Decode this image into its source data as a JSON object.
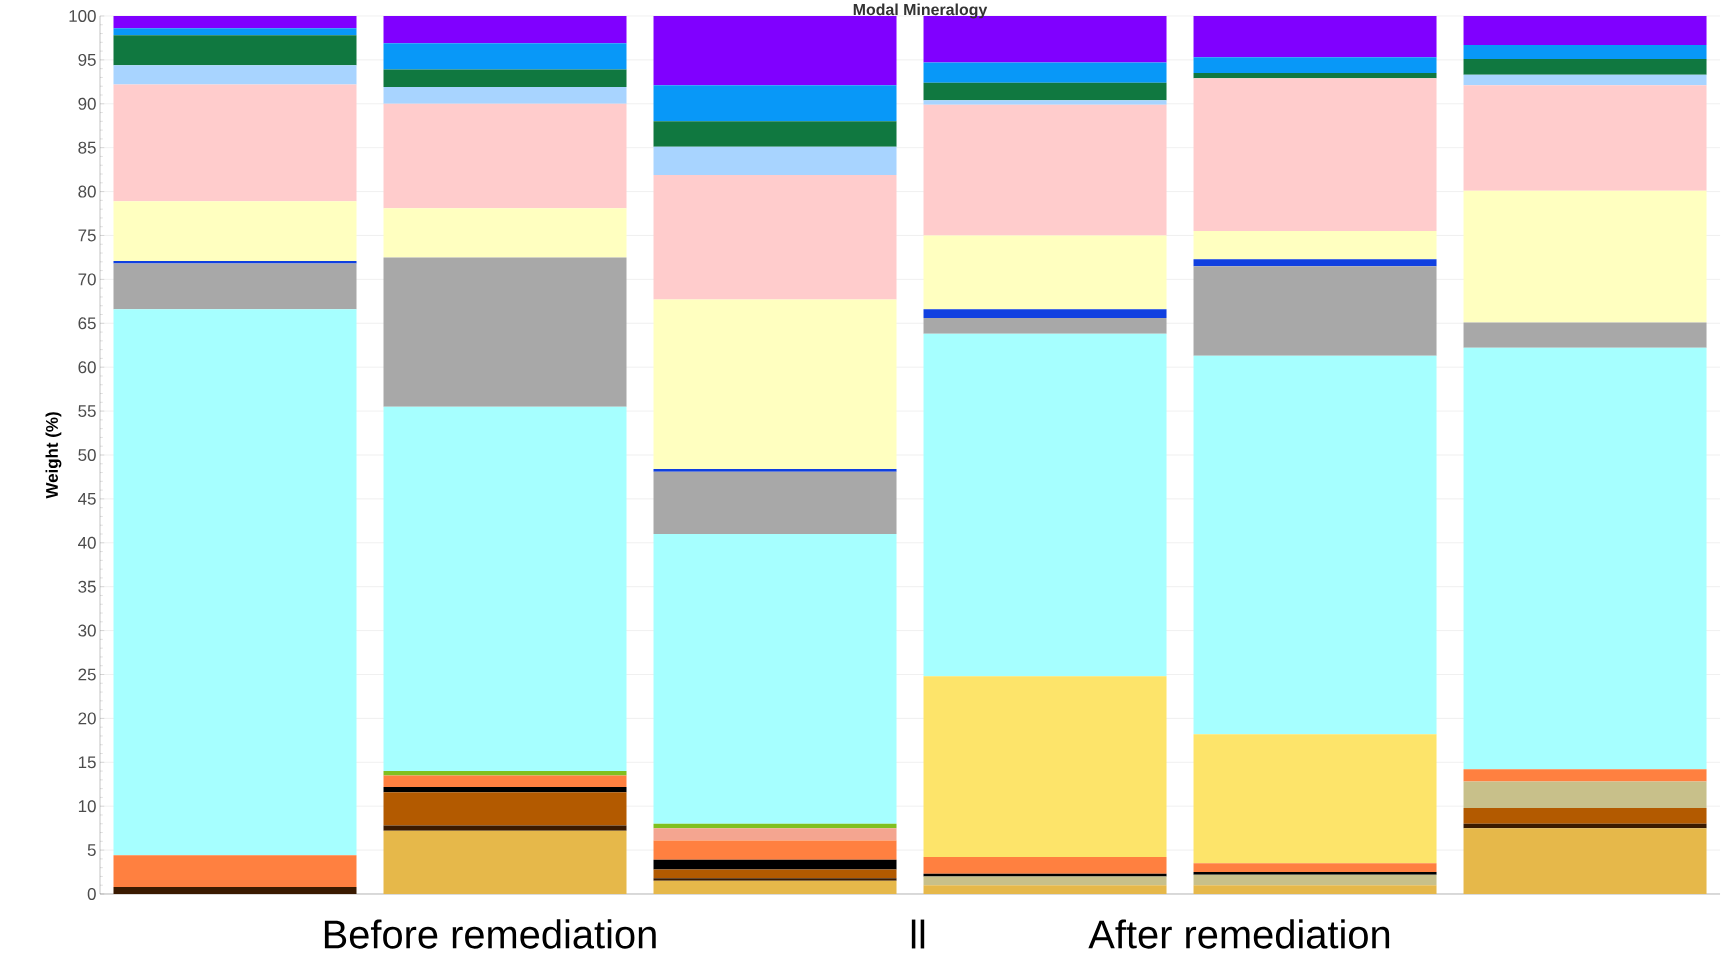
{
  "chart_data": {
    "type": "bar",
    "title": "Modal Mineralogy",
    "ylabel": "Weight (%)",
    "categories": [
      null,
      null,
      null,
      null,
      null,
      null
    ],
    "stacked": true,
    "grid": "y",
    "ylim": [
      0,
      100
    ],
    "yticks": [
      0,
      5,
      10,
      15,
      20,
      25,
      30,
      35,
      40,
      45,
      50,
      55,
      60,
      65,
      70,
      75,
      80,
      85,
      90,
      95,
      100
    ],
    "annotations": [
      "Before remediation",
      "ll",
      "After remediation"
    ],
    "series": [
      {
        "color": "#e6b84a",
        "values": [
          0,
          7.2,
          1.5,
          1.0,
          1.0,
          7.5
        ]
      },
      {
        "color": "#3a1a00",
        "values": [
          0.8,
          0.6,
          0.3,
          0,
          0,
          0.5
        ]
      },
      {
        "color": "#b35a00",
        "values": [
          0,
          3.8,
          1.0,
          0,
          0,
          1.8
        ]
      },
      {
        "color": "#c8c08a",
        "values": [
          0,
          0,
          0,
          1.0,
          1.2,
          3.0
        ]
      },
      {
        "color": "#000000",
        "values": [
          0,
          0.6,
          1.1,
          0.3,
          0.3,
          0
        ]
      },
      {
        "color": "#ff8040",
        "values": [
          3.6,
          1.3,
          2.2,
          1.9,
          1.0,
          1.4
        ]
      },
      {
        "color": "#f4a590",
        "values": [
          0,
          0,
          1.4,
          0,
          0,
          0
        ]
      },
      {
        "color": "#80c020",
        "values": [
          0,
          0.5,
          0.5,
          0,
          0,
          0
        ]
      },
      {
        "color": "#fde46a",
        "values": [
          0,
          0,
          0,
          20.6,
          14.7,
          0
        ]
      },
      {
        "color": "#a6ffff",
        "values": [
          62.2,
          41.5,
          33.0,
          39.0,
          43.1,
          48.0
        ]
      },
      {
        "color": "#a8a8a8",
        "values": [
          5.2,
          17.0,
          7.1,
          1.8,
          10.2,
          2.9
        ]
      },
      {
        "color": "#1040e0",
        "values": [
          0.3,
          0,
          0.3,
          1.0,
          0.8,
          0
        ]
      },
      {
        "color": "#ffffc0",
        "values": [
          6.8,
          5.6,
          19.3,
          8.4,
          3.2,
          15.0
        ]
      },
      {
        "color": "#ffcccc",
        "values": [
          13.3,
          11.9,
          14.2,
          14.9,
          17.4,
          12.0
        ]
      },
      {
        "color": "#a8d4ff",
        "values": [
          2.2,
          1.9,
          3.2,
          0.5,
          0,
          1.2
        ]
      },
      {
        "color": "#107840",
        "values": [
          3.4,
          2.0,
          2.9,
          2.0,
          0.6,
          1.8
        ]
      },
      {
        "color": "#0898f8",
        "values": [
          0.8,
          3.0,
          4.1,
          2.3,
          1.8,
          1.6
        ]
      },
      {
        "color": "#8000ff",
        "values": [
          1.4,
          3.1,
          7.9,
          5.3,
          4.7,
          3.3
        ]
      }
    ]
  }
}
